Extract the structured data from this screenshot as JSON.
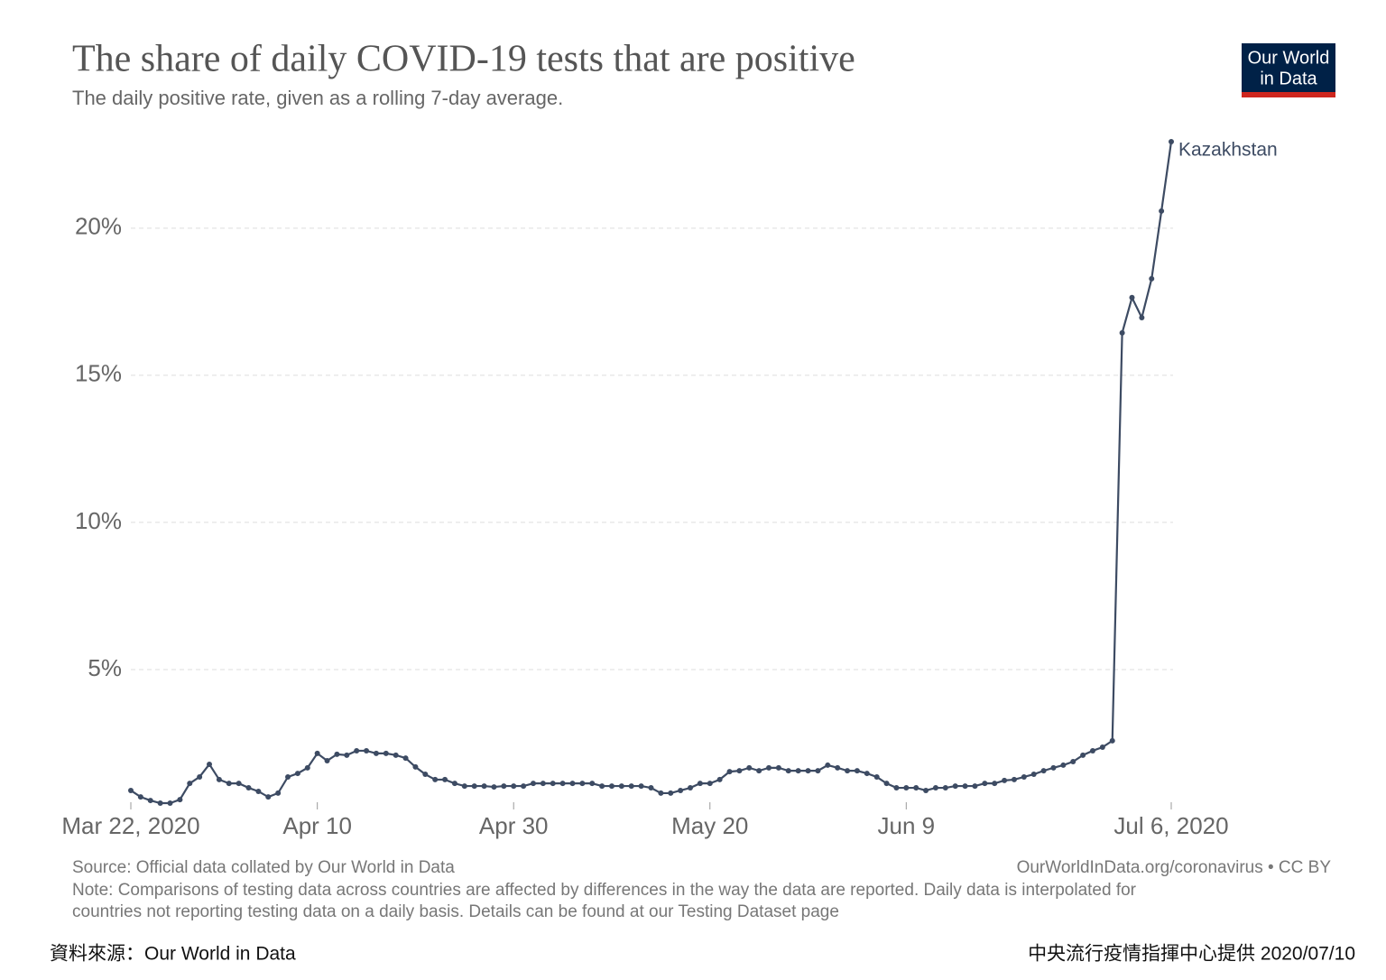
{
  "chart_data": {
    "type": "line",
    "title": "The share of daily COVID-19 tests that are positive",
    "subtitle": "The daily positive rate, given as a rolling 7-day average.",
    "x": [
      "2020-03-22",
      "2020-03-23",
      "2020-03-24",
      "2020-03-25",
      "2020-03-26",
      "2020-03-27",
      "2020-03-28",
      "2020-03-29",
      "2020-03-30",
      "2020-03-31",
      "2020-04-01",
      "2020-04-02",
      "2020-04-03",
      "2020-04-04",
      "2020-04-05",
      "2020-04-06",
      "2020-04-07",
      "2020-04-08",
      "2020-04-09",
      "2020-04-10",
      "2020-04-11",
      "2020-04-12",
      "2020-04-13",
      "2020-04-14",
      "2020-04-15",
      "2020-04-16",
      "2020-04-17",
      "2020-04-18",
      "2020-04-19",
      "2020-04-20",
      "2020-04-21",
      "2020-04-22",
      "2020-04-23",
      "2020-04-24",
      "2020-04-25",
      "2020-04-26",
      "2020-04-27",
      "2020-04-28",
      "2020-04-29",
      "2020-04-30",
      "2020-05-01",
      "2020-05-02",
      "2020-05-03",
      "2020-05-04",
      "2020-05-05",
      "2020-05-06",
      "2020-05-07",
      "2020-05-08",
      "2020-05-09",
      "2020-05-10",
      "2020-05-11",
      "2020-05-12",
      "2020-05-13",
      "2020-05-14",
      "2020-05-15",
      "2020-05-16",
      "2020-05-17",
      "2020-05-18",
      "2020-05-19",
      "2020-05-20",
      "2020-05-21",
      "2020-05-22",
      "2020-05-23",
      "2020-05-24",
      "2020-05-25",
      "2020-05-26",
      "2020-05-27",
      "2020-05-28",
      "2020-05-29",
      "2020-05-30",
      "2020-05-31",
      "2020-06-01",
      "2020-06-02",
      "2020-06-03",
      "2020-06-04",
      "2020-06-05",
      "2020-06-06",
      "2020-06-07",
      "2020-06-08",
      "2020-06-09",
      "2020-06-10",
      "2020-06-11",
      "2020-06-12",
      "2020-06-13",
      "2020-06-14",
      "2020-06-15",
      "2020-06-16",
      "2020-06-17",
      "2020-06-18",
      "2020-06-19",
      "2020-06-20",
      "2020-06-21",
      "2020-06-22",
      "2020-06-23",
      "2020-06-24",
      "2020-06-25",
      "2020-06-26",
      "2020-06-27",
      "2020-06-28",
      "2020-06-29",
      "2020-06-30",
      "2020-07-01",
      "2020-07-02",
      "2020-07-03",
      "2020-07-04",
      "2020-07-05",
      "2020-07-06"
    ],
    "series": [
      {
        "name": "Kazakhstan",
        "color": "#3d4b63",
        "values": [
          0.89,
          0.67,
          0.55,
          0.46,
          0.46,
          0.58,
          1.13,
          1.35,
          1.78,
          1.26,
          1.13,
          1.13,
          0.98,
          0.86,
          0.67,
          0.8,
          1.35,
          1.47,
          1.66,
          2.15,
          1.9,
          2.12,
          2.09,
          2.24,
          2.24,
          2.15,
          2.15,
          2.09,
          1.99,
          1.69,
          1.44,
          1.26,
          1.26,
          1.13,
          1.04,
          1.04,
          1.04,
          1.01,
          1.04,
          1.04,
          1.04,
          1.13,
          1.13,
          1.13,
          1.13,
          1.13,
          1.13,
          1.13,
          1.04,
          1.04,
          1.04,
          1.04,
          1.04,
          0.98,
          0.8,
          0.8,
          0.89,
          0.98,
          1.13,
          1.13,
          1.26,
          1.53,
          1.56,
          1.66,
          1.56,
          1.66,
          1.66,
          1.56,
          1.56,
          1.56,
          1.56,
          1.75,
          1.66,
          1.56,
          1.56,
          1.47,
          1.35,
          1.13,
          0.98,
          0.98,
          0.98,
          0.89,
          0.98,
          0.98,
          1.04,
          1.04,
          1.04,
          1.13,
          1.13,
          1.23,
          1.26,
          1.35,
          1.44,
          1.56,
          1.66,
          1.75,
          1.87,
          2.09,
          2.24,
          2.36,
          2.58,
          16.44,
          17.64,
          16.96,
          18.28,
          20.58,
          22.94
        ]
      }
    ],
    "xlim": [
      "2020-03-22",
      "2020-07-06"
    ],
    "xticks": [
      {
        "value": "2020-03-22",
        "label": "Mar 22, 2020"
      },
      {
        "value": "2020-04-10",
        "label": "Apr 10"
      },
      {
        "value": "2020-04-30",
        "label": "Apr 30"
      },
      {
        "value": "2020-05-20",
        "label": "May 20"
      },
      {
        "value": "2020-06-09",
        "label": "Jun 9"
      },
      {
        "value": "2020-07-06",
        "label": "Jul 6, 2020"
      }
    ],
    "ylim": [
      0,
      23
    ],
    "yticks": [
      {
        "value": 5,
        "label": "5%"
      },
      {
        "value": 10,
        "label": "10%"
      },
      {
        "value": 15,
        "label": "15%"
      },
      {
        "value": 20,
        "label": "20%"
      }
    ],
    "grid": true,
    "source": "Source: Official data collated by Our World in Data",
    "license": "OurWorldInData.org/coronavirus • CC BY",
    "note": [
      "Note: Comparisons of testing data across countries are affected by differences in the way the data are reported. Daily data is interpolated for",
      "countries not reporting testing data on a daily basis. Details can be found at our Testing Dataset page"
    ]
  },
  "logo": [
    "Our World",
    "in Data"
  ],
  "footer": {
    "left": "資料來源：Our World in Data",
    "right": "中央流行疫情指揮中心提供 2020/07/10"
  }
}
